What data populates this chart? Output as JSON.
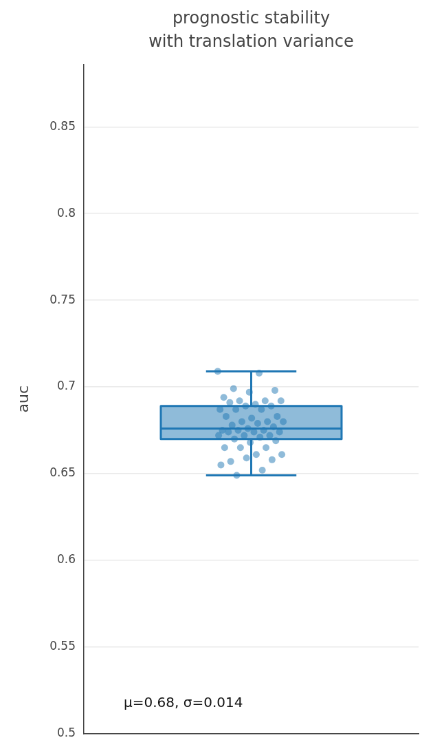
{
  "chart_data": {
    "type": "box",
    "title": "prognostic stability\nwith translation variance",
    "ylabel": "auc",
    "categories": [
      null
    ],
    "series": [
      {
        "type": "box",
        "color": "#1f77b4",
        "boxes": [
          {
            "low": 0.649,
            "q1": 0.67,
            "median": 0.676,
            "q3": 0.689,
            "high": 0.709
          }
        ]
      },
      {
        "type": "scatter",
        "color": "#1f77b4",
        "x": [
          null,
          null,
          null,
          null,
          null,
          null,
          null,
          null,
          null,
          null,
          null,
          null,
          null,
          null,
          null,
          null,
          null,
          null,
          null,
          null,
          null,
          null,
          null,
          null,
          null,
          null,
          null,
          null,
          null,
          null,
          null,
          null,
          null,
          null,
          null,
          null,
          null,
          null,
          null,
          null,
          null,
          null,
          null,
          null,
          null,
          null,
          null,
          null,
          null,
          null
        ],
        "values": [
          0.709,
          0.708,
          0.699,
          0.698,
          0.697,
          0.694,
          0.692,
          0.692,
          0.692,
          0.69,
          0.691,
          0.689,
          0.689,
          0.687,
          0.687,
          0.687,
          0.683,
          0.682,
          0.683,
          0.68,
          0.68,
          0.68,
          0.679,
          0.678,
          0.677,
          0.676,
          0.675,
          0.675,
          0.675,
          0.674,
          0.674,
          0.674,
          0.672,
          0.672,
          0.672,
          0.671,
          0.67,
          0.669,
          0.668,
          0.665,
          0.665,
          0.665,
          0.661,
          0.661,
          0.657,
          0.658,
          0.659,
          0.655,
          0.652,
          0.649
        ]
      }
    ],
    "ylim": [
      0.5,
      0.886
    ],
    "yticks": [
      0.5,
      0.55,
      0.6,
      0.65,
      0.7,
      0.75,
      0.8,
      0.85
    ],
    "grid": "y",
    "marker": "circle",
    "annotations": [
      "μ=0.68, σ=0.014"
    ]
  }
}
